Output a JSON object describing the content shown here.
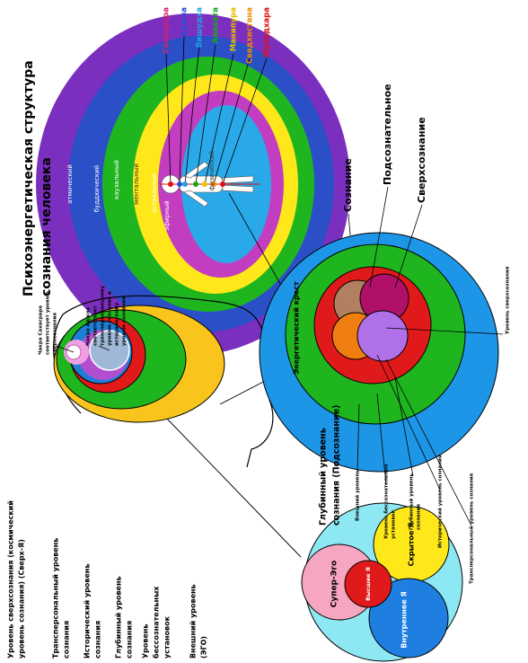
{
  "title": [
    "Психоэнергетическая структура",
    "сознания человека"
  ],
  "chakras": [
    "Сахасрара",
    "Аджна",
    "Вишудха",
    "Анахата",
    "Манипура",
    "Свадхистана",
    "Муладхара"
  ],
  "subtle_bodies": [
    "атмический",
    "буддхический",
    "каузальный",
    "ментальный",
    "астральный",
    "эфирный",
    "физический"
  ],
  "energy_cross": "Энергетический крест",
  "head_labels": [
    [
      "Чакра Сахасрара",
      "соответствует уровню",
      "сверхсознания"
    ],
    [
      "Чакра Аджна",
      "соответствует",
      "трансперсональному",
      "уровню сознания и",
      "историческому",
      "уровню сознания"
    ]
  ],
  "levels_left": [
    [
      "Уровень сверхсознания (космический",
      "уровень сознания) (Сверх-Я)"
    ],
    [
      "Трансперсональный уровень",
      "сознания"
    ],
    [
      "Исторический уровень",
      "сознания"
    ],
    [
      "Глубинный уровень",
      "сознания"
    ],
    [
      "Уровень",
      "бессознательных",
      "установок"
    ],
    [
      "Внешний уровень",
      "(ЭГО)"
    ]
  ],
  "consciousness_circle": {
    "main": [
      "Сознание",
      "Подсознательное",
      "Сверхсознание"
    ],
    "levels": [
      [
        "Уровень сверхсознания"
      ],
      [
        "Внешний уровень"
      ],
      [
        "Уровень бессознательных",
        "установок"
      ],
      [
        "Глубинный уровень",
        "сознания"
      ],
      [
        "Исторический уровень сознания"
      ],
      [
        "Трансперсональный уровень сознания"
      ]
    ]
  },
  "subconscious_circle": {
    "title": [
      "Глубинный уровень",
      "сознания (Подсознание)"
    ],
    "parts": [
      "Супер-Эго",
      "Высшее Я",
      "Скрытое Я",
      "Внутреннее Я"
    ]
  }
}
